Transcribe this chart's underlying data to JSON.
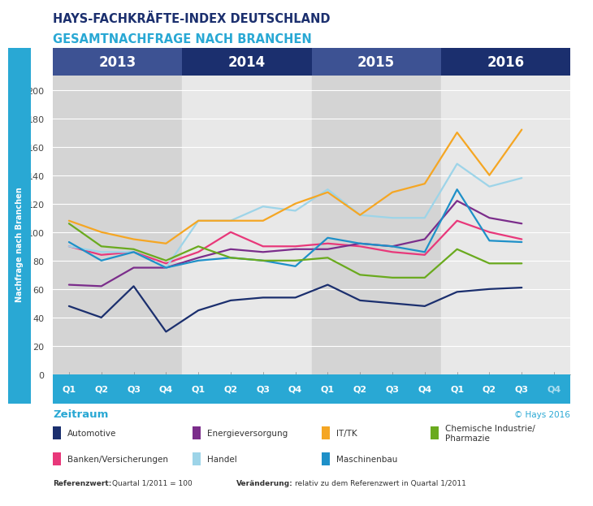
{
  "title1": "HAYS-FACHKRÄFTE-INDEX DEUTSCHLAND",
  "title2": "GESAMTNACHFRAGE NACH BRANCHEN",
  "ylabel": "Nachfrage nach Branchen",
  "xlabel": "Zeitraum",
  "copyright": "© Hays 2016",
  "footnote_ref_bold": "Referenzwert:",
  "footnote_ref_normal": "Quartal 1/2011 = 100",
  "footnote_aend_bold": "Veränderung:",
  "footnote_aend_normal": "relativ zu dem Referenzwert in Quartal 1/2011",
  "ylim": [
    0,
    210
  ],
  "yticks": [
    0,
    20,
    40,
    60,
    80,
    100,
    120,
    140,
    160,
    180,
    200
  ],
  "year_labels": [
    "2013",
    "2014",
    "2015",
    "2016"
  ],
  "quarter_labels": [
    "Q1",
    "Q2",
    "Q3",
    "Q4",
    "Q1",
    "Q2",
    "Q3",
    "Q4",
    "Q1",
    "Q2",
    "Q3",
    "Q4",
    "Q1",
    "Q2",
    "Q3",
    "Q4"
  ],
  "series": {
    "Automotive": {
      "color": "#1b2f6e",
      "values": [
        48,
        40,
        62,
        30,
        45,
        52,
        54,
        54,
        63,
        52,
        50,
        48,
        58,
        60,
        61,
        null
      ]
    },
    "Banken/Versicherungen": {
      "color": "#e8387a",
      "values": [
        90,
        84,
        86,
        78,
        86,
        100,
        90,
        90,
        92,
        90,
        86,
        84,
        108,
        100,
        95,
        null
      ]
    },
    "Energieversorgung": {
      "color": "#7b2d8b",
      "values": [
        63,
        62,
        75,
        75,
        82,
        88,
        86,
        88,
        88,
        92,
        90,
        95,
        122,
        110,
        106,
        null
      ]
    },
    "Handel": {
      "color": "#9dd4e8",
      "values": [
        90,
        86,
        86,
        75,
        108,
        108,
        118,
        115,
        130,
        112,
        110,
        110,
        148,
        132,
        138,
        null
      ]
    },
    "IT/TK": {
      "color": "#f5a623",
      "values": [
        108,
        100,
        95,
        92,
        108,
        108,
        108,
        120,
        128,
        112,
        128,
        134,
        170,
        140,
        172,
        null
      ]
    },
    "Maschinenbau": {
      "color": "#1e90c8",
      "values": [
        93,
        80,
        86,
        75,
        80,
        82,
        80,
        76,
        96,
        92,
        90,
        86,
        130,
        94,
        93,
        null
      ]
    },
    "Chemische Industrie/\nPharmazie": {
      "color": "#6aaa1e",
      "values": [
        106,
        90,
        88,
        80,
        90,
        82,
        80,
        80,
        82,
        70,
        68,
        68,
        88,
        78,
        78,
        null
      ]
    }
  },
  "bg_colors_odd": "#d4d4d4",
  "bg_colors_even": "#e8e8e8",
  "header_color_odd": "#3d5293",
  "header_color_even": "#1b2f6e",
  "cyan_bar": "#29a8d4",
  "title1_color": "#1b2f6e",
  "title2_color": "#29a8d4",
  "label_color": "#29a8d4",
  "copyright_color": "#29a8d4",
  "text_dark": "#333333",
  "grid_color": "#ffffff",
  "tick_color": "#aaaaaa"
}
